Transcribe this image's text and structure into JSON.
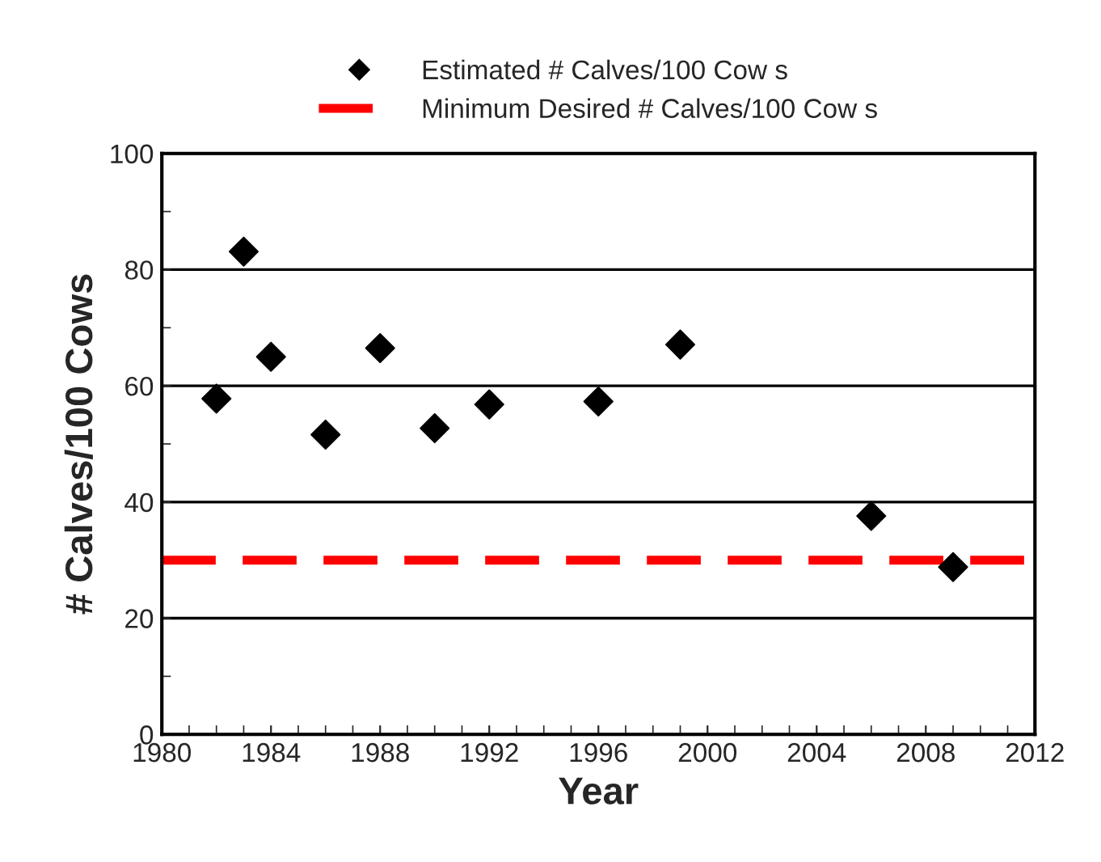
{
  "chart_data": {
    "type": "scatter",
    "xlabel": "Year",
    "ylabel": "# Calves/100 Cows",
    "x": [
      1982,
      1983,
      1984,
      1986,
      1988,
      1990,
      1992,
      1996,
      1999,
      2006,
      2009
    ],
    "series": [
      {
        "name": "Estimated # Calves/100 Cow s",
        "color": "#000000",
        "values": [
          57.8,
          83.1,
          65.0,
          51.6,
          66.5,
          52.7,
          56.8,
          57.3,
          67.1,
          37.6,
          28.8
        ]
      }
    ],
    "marker": "diamond",
    "ref_lines": [
      {
        "axis": "y",
        "value": 30,
        "label": "Minimum Desired # Calves/100 Cow s",
        "color": "#ff0000",
        "line_style": "dashed"
      }
    ],
    "xlim": [
      1980,
      2012
    ],
    "xticks": [
      1980,
      1984,
      1988,
      1992,
      1996,
      2000,
      2004,
      2008,
      2012
    ],
    "ylim": [
      0,
      100
    ],
    "yticks": [
      0,
      20,
      40,
      60,
      80,
      100
    ],
    "grid": "y",
    "legend": "top"
  }
}
